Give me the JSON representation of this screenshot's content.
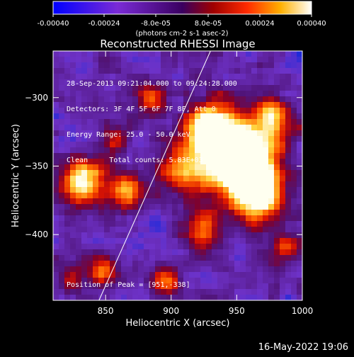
{
  "chart_data": {
    "type": "heatmap",
    "title": "Reconstructed RHESSI Image",
    "xlabel": "Heliocentric X (arcsec)",
    "ylabel": "Heliocentric Y (arcsec)",
    "xlim": [
      810,
      1000
    ],
    "ylim": [
      -448,
      -266
    ],
    "xticks": [
      850,
      900,
      950,
      1000
    ],
    "yticks": [
      -300,
      -350,
      -400
    ],
    "colorbar": {
      "min": -0.0004,
      "max": 0.0004,
      "ticks": [
        "-0.00040",
        "-0.00024",
        "-8.0e-05",
        "8.0e-05",
        "0.00024",
        "0.00040"
      ],
      "unit_label": "(photons cm-2 s-1 asec-2)"
    },
    "info_lines": [
      "28-Sep-2013 09:21:04.000 to 09:24:28.000",
      "Detectors: 3F 4F 5F 6F 7F 8F, Att 0",
      "Energy Range: 25.0 - 50.0 keV",
      "Clean     Total counts: 5.83E+03"
    ],
    "peak_text": "Position of Peak = [951,-338]",
    "limb_line": [
      [
        845,
        -448
      ],
      [
        930,
        -266
      ]
    ]
  },
  "footer": {
    "timestamp": "16-May-2022 19:06"
  }
}
